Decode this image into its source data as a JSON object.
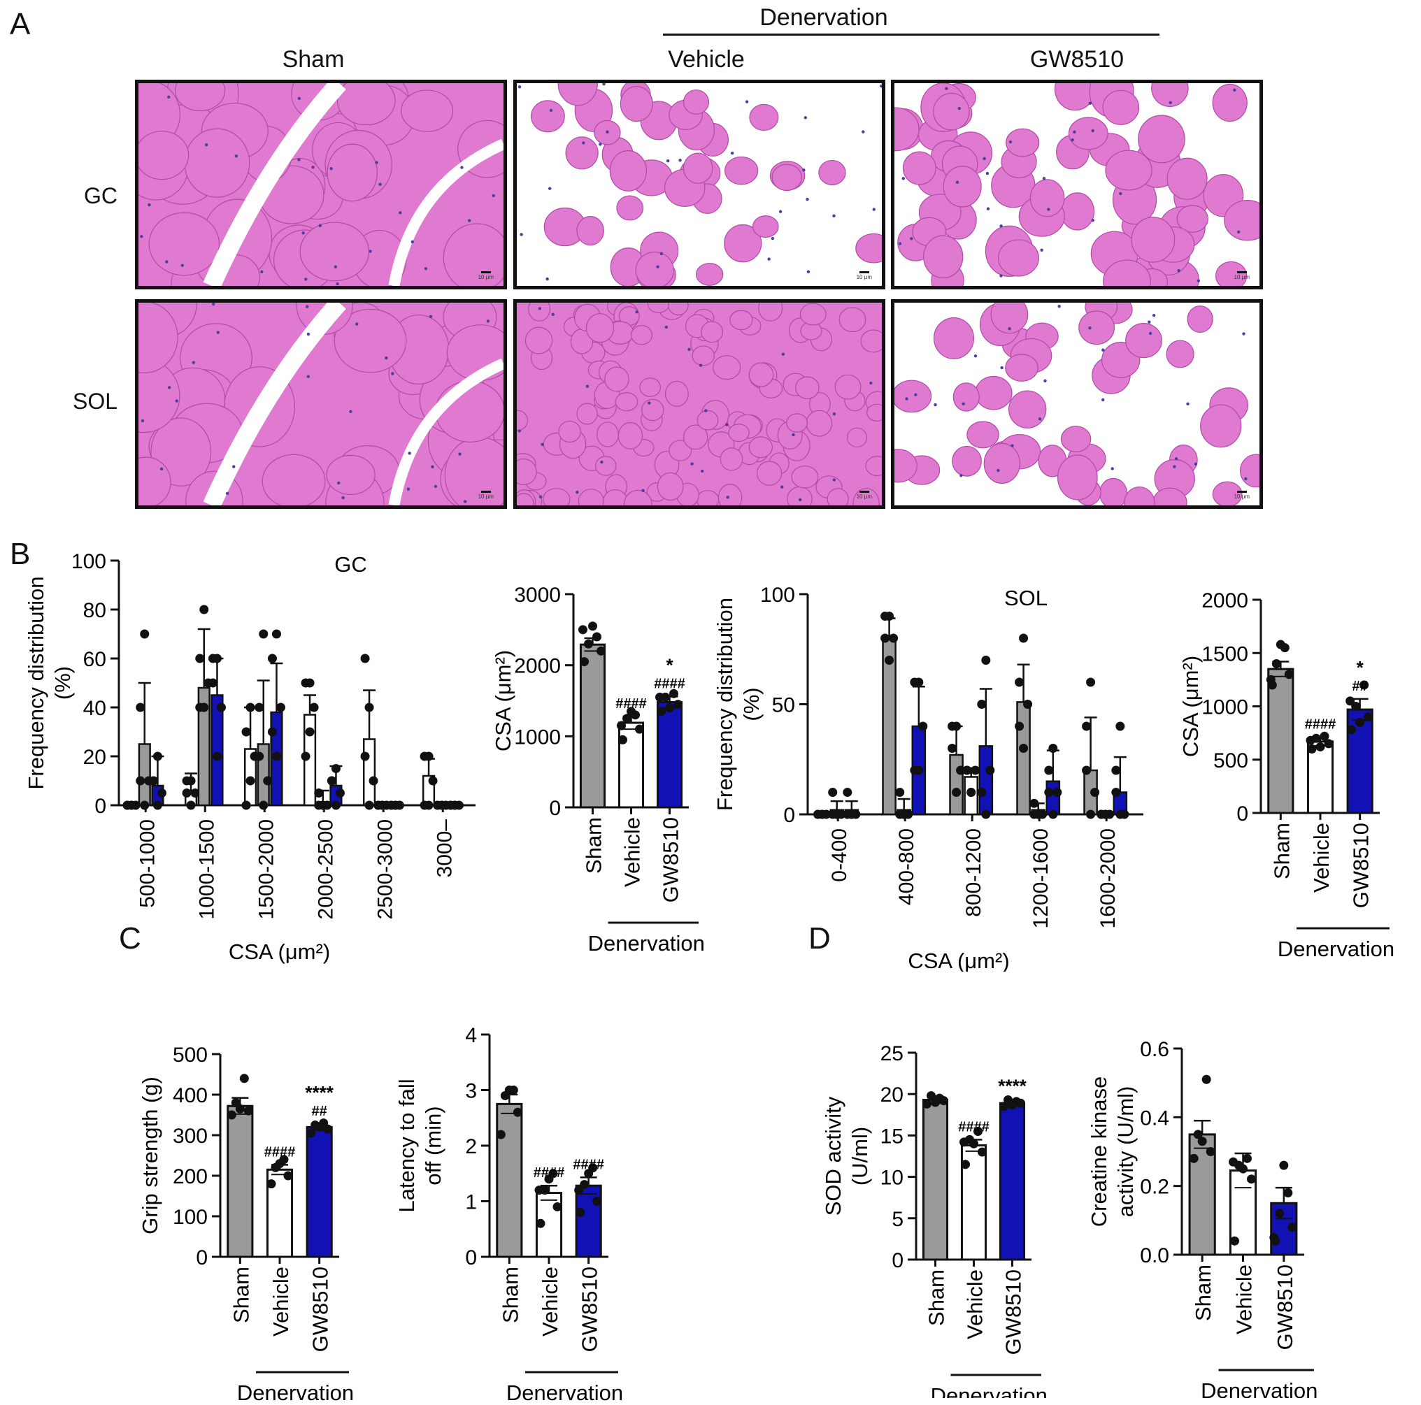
{
  "panel_labels": {
    "a": "A",
    "b": "B",
    "c": "C",
    "d": "D"
  },
  "panel_a": {
    "group_header": "Denervation",
    "columns": [
      "Sham",
      "Vehicle",
      "GW8510"
    ],
    "rows": [
      "GC",
      "SOL"
    ],
    "scale_bar": "10 μm",
    "tissue_colors": {
      "fiber": "#e07ad0",
      "stroma": "#ffffff",
      "border": "#b04aa8",
      "nuclei": "#4a3fa0"
    }
  },
  "chart_data": [
    {
      "id": "gc_freq",
      "type": "bar",
      "title": "GC",
      "ylabel": "Frequency distribution (%)",
      "xlabel": "CSA (μm²)",
      "ylim": [
        0,
        100
      ],
      "yticks": [
        0,
        20,
        40,
        60,
        80,
        100
      ],
      "categories": [
        "500-1000",
        "1000-1500",
        "1500-2000",
        "2000-2500",
        "2500-3000",
        "3000–"
      ],
      "series": [
        {
          "color": "#ffffff",
          "values": [
            0,
            5,
            23,
            37,
            27,
            12
          ],
          "err": [
            0,
            8,
            17,
            8,
            20,
            7
          ],
          "dots": [
            [
              0,
              0,
              0,
              0,
              0
            ],
            [
              0,
              5,
              5,
              10,
              10
            ],
            [
              10,
              20,
              30,
              40,
              0
            ],
            [
              30,
              40,
              50,
              50,
              20
            ],
            [
              0,
              10,
              20,
              40,
              60
            ],
            [
              0,
              10,
              20,
              20,
              0
            ]
          ]
        },
        {
          "color": "#9a9a9a",
          "values": [
            25,
            48,
            25,
            1,
            0,
            0
          ],
          "err": [
            25,
            24,
            26,
            5,
            0,
            0
          ],
          "dots": [
            [
              0,
              10,
              40,
              70,
              10
            ],
            [
              40,
              50,
              60,
              80,
              40
            ],
            [
              0,
              10,
              40,
              70,
              20
            ],
            [
              0,
              0,
              5,
              0,
              0
            ],
            [
              0,
              0,
              0,
              0,
              0
            ],
            [
              0,
              0,
              0,
              0,
              0
            ]
          ]
        },
        {
          "color": "#1212b4",
          "values": [
            8,
            45,
            38,
            8,
            0,
            0
          ],
          "err": [
            12,
            15,
            20,
            8,
            0,
            0
          ],
          "dots": [
            [
              0,
              5,
              10,
              20,
              10
            ],
            [
              20,
              40,
              60,
              60,
              50
            ],
            [
              20,
              40,
              60,
              70,
              30
            ],
            [
              0,
              5,
              10,
              15,
              10
            ],
            [
              0,
              0,
              0,
              0,
              0
            ],
            [
              0,
              0,
              0,
              0,
              0
            ]
          ]
        }
      ]
    },
    {
      "id": "gc_csa",
      "type": "bar",
      "ylabel": "CSA (μm²)",
      "ylim": [
        0,
        3000
      ],
      "yticks": [
        0,
        1000,
        2000,
        3000
      ],
      "categories": [
        "Sham",
        "Vehicle",
        "GW8510"
      ],
      "group_label": "Denervation",
      "colors": [
        "#9a9a9a",
        "#ffffff",
        "#1212b4"
      ],
      "values": [
        2290,
        1190,
        1480
      ],
      "err": [
        90,
        90,
        80
      ],
      "dots": [
        [
          2050,
          2200,
          2300,
          2400,
          2550,
          2500
        ],
        [
          950,
          1100,
          1250,
          1300,
          1350,
          1150
        ],
        [
          1350,
          1450,
          1550,
          1600,
          1400,
          1550
        ]
      ],
      "annotations": [
        "",
        "####",
        "*\n####"
      ]
    },
    {
      "id": "sol_freq",
      "type": "bar",
      "title": "SOL",
      "ylabel": "Frequency distribution (%)",
      "xlabel": "CSA (μm²)",
      "ylim": [
        0,
        100
      ],
      "yticks": [
        0,
        50,
        100
      ],
      "categories": [
        "0-400",
        "400-800",
        "800-1200",
        "1200-1600",
        "1600-2000"
      ],
      "series": [
        {
          "color": "#9a9a9a",
          "values": [
            0,
            80,
            27,
            51,
            20
          ],
          "err": [
            0,
            9,
            13,
            17,
            24
          ],
          "dots": [
            [
              0,
              0,
              0,
              0,
              0
            ],
            [
              70,
              80,
              90,
              90,
              80
            ],
            [
              10,
              20,
              30,
              40,
              40
            ],
            [
              30,
              50,
              60,
              80,
              40
            ],
            [
              0,
              10,
              20,
              60,
              40
            ]
          ]
        },
        {
          "color": "#ffffff",
          "values": [
            2,
            2,
            17,
            2,
            0
          ],
          "err": [
            4,
            5,
            4,
            3,
            0
          ],
          "dots": [
            [
              0,
              0,
              10,
              0,
              0
            ],
            [
              0,
              0,
              10,
              0,
              0
            ],
            [
              10,
              20,
              20,
              10,
              20
            ],
            [
              0,
              0,
              5,
              0,
              0
            ],
            [
              0,
              0,
              0,
              0,
              0
            ]
          ]
        },
        {
          "color": "#1212b4",
          "values": [
            2,
            40,
            31,
            15,
            10
          ],
          "err": [
            4,
            18,
            26,
            14,
            16
          ],
          "dots": [
            [
              0,
              0,
              10,
              0,
              0
            ],
            [
              20,
              40,
              60,
              60,
              20
            ],
            [
              0,
              20,
              50,
              70,
              10
            ],
            [
              0,
              10,
              20,
              30,
              10
            ],
            [
              0,
              0,
              10,
              40,
              20
            ]
          ]
        }
      ]
    },
    {
      "id": "sol_csa",
      "type": "bar",
      "ylabel": "CSA (μm²)",
      "ylim": [
        0,
        2000
      ],
      "yticks": [
        0,
        500,
        1000,
        1500,
        2000
      ],
      "categories": [
        "Sham",
        "Vehicle",
        "GW8510"
      ],
      "group_label": "Denervation",
      "colors": [
        "#9a9a9a",
        "#ffffff",
        "#1212b4"
      ],
      "values": [
        1350,
        670,
        970
      ],
      "err": [
        70,
        40,
        100
      ],
      "dots": [
        [
          1200,
          1300,
          1400,
          1550,
          1580,
          1250
        ],
        [
          600,
          650,
          700,
          720,
          620,
          680
        ],
        [
          780,
          900,
          1000,
          1200,
          850,
          1050
        ]
      ],
      "annotations": [
        "",
        "####",
        "*\n##"
      ]
    },
    {
      "id": "grip",
      "type": "bar",
      "ylabel": "Grip strength (g)",
      "ylim": [
        0,
        500
      ],
      "yticks": [
        0,
        100,
        200,
        300,
        400,
        500
      ],
      "categories": [
        "Sham",
        "Vehicle",
        "GW8510"
      ],
      "group_label": "Denervation",
      "colors": [
        "#9a9a9a",
        "#ffffff",
        "#1212b4"
      ],
      "values": [
        372,
        215,
        320
      ],
      "err": [
        20,
        12,
        8
      ],
      "dots": [
        [
          350,
          360,
          380,
          440,
          365
        ],
        [
          180,
          200,
          220,
          240,
          230
        ],
        [
          305,
          315,
          325,
          330,
          320
        ]
      ],
      "annotations": [
        "",
        "####",
        "****\n##"
      ]
    },
    {
      "id": "latency",
      "type": "bar",
      "ylabel": "Latency to fall off (min)",
      "ylim": [
        0,
        4
      ],
      "yticks": [
        0,
        1,
        2,
        3,
        4
      ],
      "categories": [
        "Sham",
        "Vehicle",
        "GW8510"
      ],
      "group_label": "Denervation",
      "colors": [
        "#9a9a9a",
        "#ffffff",
        "#1212b4"
      ],
      "values": [
        2.75,
        1.15,
        1.28
      ],
      "err": [
        0.17,
        0.13,
        0.15
      ],
      "dots": [
        [
          2.2,
          2.6,
          2.9,
          3.0,
          3.0
        ],
        [
          0.6,
          0.9,
          1.2,
          1.5,
          1.4,
          1.2
        ],
        [
          0.8,
          1.0,
          1.3,
          1.6,
          1.5,
          1.2
        ]
      ],
      "annotations": [
        "",
        "####",
        "####"
      ]
    },
    {
      "id": "sod",
      "type": "bar",
      "ylabel": "SOD activity (U/ml)",
      "ylim": [
        0,
        25
      ],
      "yticks": [
        0,
        5,
        10,
        15,
        20,
        25
      ],
      "categories": [
        "Sham",
        "Vehicle",
        "GW8510"
      ],
      "group_label": "Denervation",
      "colors": [
        "#9a9a9a",
        "#ffffff",
        "#1212b4"
      ],
      "values": [
        19.3,
        13.8,
        18.9
      ],
      "err": [
        0.4,
        0.7,
        0.3
      ],
      "dots": [
        [
          18.8,
          19.2,
          19.8,
          19.5,
          19.0
        ],
        [
          11.5,
          13.0,
          14.5,
          15.5,
          14.0,
          14.2
        ],
        [
          18.5,
          18.9,
          19.3,
          19.1,
          18.7
        ]
      ],
      "annotations": [
        "",
        "####",
        "****"
      ]
    },
    {
      "id": "ck",
      "type": "bar",
      "ylabel": "Creatine kinase activity (U/ml)",
      "ylim": [
        0,
        0.6
      ],
      "yticks": [
        0.0,
        0.2,
        0.4,
        0.6
      ],
      "categories": [
        "Sham",
        "Vehicle",
        "GW8510"
      ],
      "group_label": "Denervation",
      "colors": [
        "#9a9a9a",
        "#ffffff",
        "#1212b4"
      ],
      "values": [
        0.35,
        0.245,
        0.15
      ],
      "err": [
        0.04,
        0.05,
        0.045
      ],
      "dots": [
        [
          0.28,
          0.3,
          0.35,
          0.51,
          0.33
        ],
        [
          0.04,
          0.22,
          0.26,
          0.28,
          0.25,
          0.27
        ],
        [
          0.04,
          0.08,
          0.12,
          0.18,
          0.26,
          0.05
        ]
      ],
      "annotations": [
        "",
        "",
        ""
      ]
    }
  ]
}
